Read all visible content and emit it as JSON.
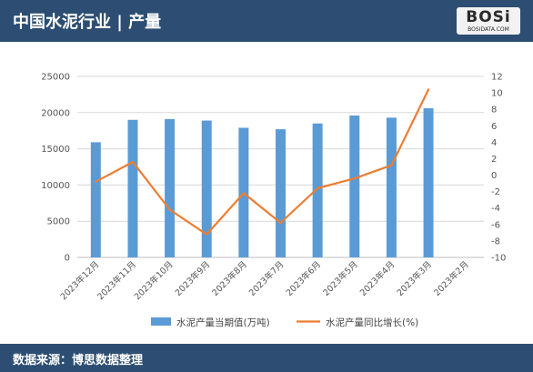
{
  "header": {
    "title": "中国水泥行业 | 产量"
  },
  "logo": {
    "main": "BOSi",
    "sub": "BOSIDATA.COM"
  },
  "footer": {
    "source": "数据来源：博思数据整理"
  },
  "colors": {
    "header_bg": "#2d4e72",
    "bar": "#5b9bd5",
    "line": "#ed7d31"
  },
  "chart_data": {
    "type": "bar+line",
    "categories": [
      "2023年12月",
      "2023年11月",
      "2023年10月",
      "2023年9月",
      "2023年8月",
      "2023年7月",
      "2023年6月",
      "2023年5月",
      "2023年4月",
      "2023年3月",
      "2023年2月"
    ],
    "series": [
      {
        "name": "水泥产量当期值(万吨)",
        "type": "bar",
        "axis": "left",
        "values": [
          15900,
          19000,
          19100,
          18900,
          17900,
          17700,
          18500,
          19600,
          19300,
          20600,
          null
        ]
      },
      {
        "name": "水泥产量同比增长(%)",
        "type": "line",
        "axis": "right",
        "values": [
          -0.8,
          1.6,
          -4.2,
          -7.2,
          -2.2,
          -5.8,
          -1.6,
          -0.4,
          1.2,
          10.4,
          null
        ]
      }
    ],
    "y_left": {
      "ylim": [
        0,
        25000
      ],
      "ticks": [
        "0",
        "5000",
        "10000",
        "15000",
        "20000",
        "25000"
      ]
    },
    "y_right": {
      "ylim": [
        -10,
        12
      ],
      "ticks": [
        "-10",
        "-8",
        "-6",
        "-4",
        "-2",
        "0",
        "2",
        "4",
        "6",
        "8",
        "10",
        "12"
      ]
    },
    "grid": true,
    "legend_position": "bottom"
  }
}
